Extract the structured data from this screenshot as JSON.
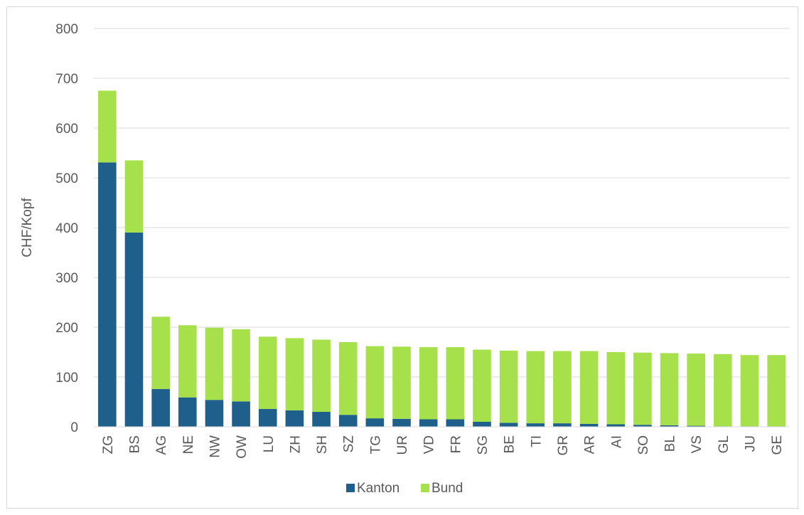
{
  "chart_data": {
    "type": "bar",
    "stacked": true,
    "title": "",
    "xlabel": "",
    "ylabel": "CHF/Kopf",
    "ylim": [
      0,
      800
    ],
    "yticks": [
      0,
      100,
      200,
      300,
      400,
      500,
      600,
      700,
      800
    ],
    "grid": true,
    "legend": "bottom",
    "categories": [
      "ZG",
      "BS",
      "AG",
      "NE",
      "NW",
      "OW",
      "LU",
      "ZH",
      "SH",
      "SZ",
      "TG",
      "UR",
      "VD",
      "FR",
      "SG",
      "BE",
      "TI",
      "GR",
      "AR",
      "AI",
      "SO",
      "BL",
      "VS",
      "GL",
      "JU",
      "GE"
    ],
    "series": [
      {
        "name": "Kanton",
        "color": "#1f5f8b",
        "values": [
          531,
          390,
          76,
          59,
          54,
          51,
          36,
          33,
          30,
          24,
          17,
          16,
          15,
          15,
          10,
          8,
          7,
          7,
          6,
          5,
          4,
          3,
          2,
          1,
          1,
          1
        ]
      },
      {
        "name": "Bund",
        "color": "#a6e04a",
        "values": [
          144,
          145,
          145,
          145,
          145,
          145,
          145,
          145,
          145,
          146,
          145,
          145,
          145,
          145,
          145,
          145,
          145,
          145,
          146,
          145,
          145,
          145,
          145,
          145,
          143,
          143
        ]
      }
    ]
  }
}
